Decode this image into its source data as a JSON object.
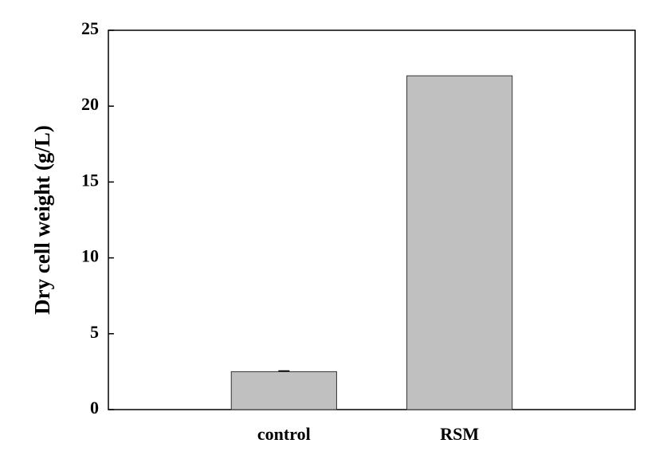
{
  "chart_data": {
    "type": "bar",
    "y_label": "Dry cell weight (g/L)",
    "categories": [
      "control",
      "RSM"
    ],
    "values": [
      2.5,
      22
    ],
    "errors": [
      0.05,
      null
    ],
    "color": "#c0c0c0",
    "ylim": [
      0,
      25
    ],
    "yticks": [
      0,
      5,
      10,
      15,
      20,
      25
    ],
    "grid": false
  }
}
